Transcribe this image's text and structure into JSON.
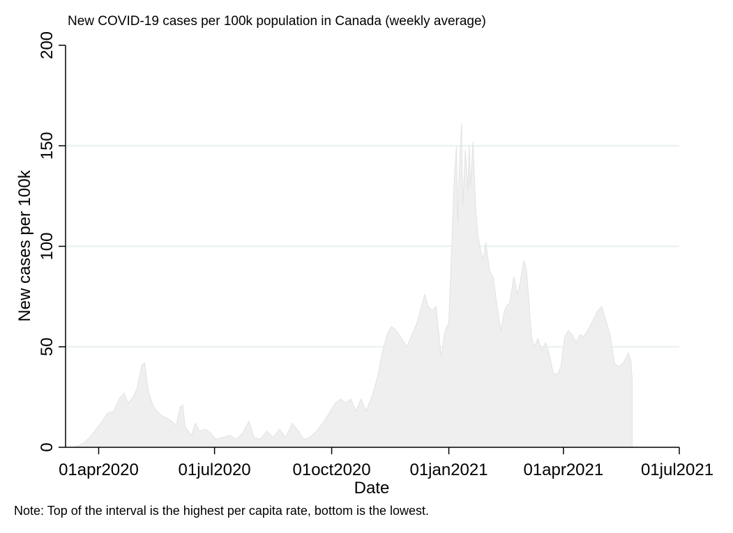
{
  "chart_data": {
    "type": "area",
    "title": "New COVID-19 cases per 100k population in Canada (weekly average)",
    "xlabel": "Date",
    "ylabel": "New cases per 100k",
    "note": "Note: Top of the interval is the highest per capita rate, bottom is the lowest.",
    "ylim": [
      0,
      200
    ],
    "xlim": [
      "2020-03-06",
      "2021-07-01"
    ],
    "yticks": [
      0,
      50,
      100,
      150,
      200
    ],
    "xticks": [
      {
        "date": "2020-04-01",
        "label": "01apr2020"
      },
      {
        "date": "2020-07-01",
        "label": "01jul2020"
      },
      {
        "date": "2020-10-01",
        "label": "01oct2020"
      },
      {
        "date": "2021-01-01",
        "label": "01jan2021"
      },
      {
        "date": "2021-04-01",
        "label": "01apr2021"
      },
      {
        "date": "2021-07-01",
        "label": "01jul2021"
      }
    ],
    "gridlines": [
      50,
      100,
      150
    ],
    "area_color": "#efefef",
    "area_stroke": "#e2e2e2",
    "grid_color": "#e7efef",
    "series": [
      {
        "values": [
          [
            "2020-03-11",
            0
          ],
          [
            "2020-03-15",
            0.5
          ],
          [
            "2020-03-20",
            2
          ],
          [
            "2020-03-25",
            5
          ],
          [
            "2020-03-30",
            9
          ],
          [
            "2020-04-04",
            13
          ],
          [
            "2020-04-08",
            17
          ],
          [
            "2020-04-13",
            18
          ],
          [
            "2020-04-17",
            24
          ],
          [
            "2020-04-21",
            27
          ],
          [
            "2020-04-24",
            22
          ],
          [
            "2020-04-28",
            25
          ],
          [
            "2020-05-01",
            29
          ],
          [
            "2020-05-05",
            41
          ],
          [
            "2020-05-07",
            42
          ],
          [
            "2020-05-10",
            28
          ],
          [
            "2020-05-14",
            20
          ],
          [
            "2020-05-20",
            16
          ],
          [
            "2020-05-26",
            14
          ],
          [
            "2020-06-01",
            11
          ],
          [
            "2020-06-04",
            20
          ],
          [
            "2020-06-06",
            21
          ],
          [
            "2020-06-08",
            10
          ],
          [
            "2020-06-13",
            6
          ],
          [
            "2020-06-16",
            12
          ],
          [
            "2020-06-19",
            8
          ],
          [
            "2020-06-24",
            9
          ],
          [
            "2020-06-28",
            7
          ],
          [
            "2020-07-02",
            4
          ],
          [
            "2020-07-08",
            5
          ],
          [
            "2020-07-13",
            6
          ],
          [
            "2020-07-18",
            4
          ],
          [
            "2020-07-23",
            7
          ],
          [
            "2020-07-28",
            13
          ],
          [
            "2020-08-01",
            5
          ],
          [
            "2020-08-06",
            4
          ],
          [
            "2020-08-11",
            8
          ],
          [
            "2020-08-16",
            5
          ],
          [
            "2020-08-21",
            9
          ],
          [
            "2020-08-26",
            5
          ],
          [
            "2020-08-31",
            12
          ],
          [
            "2020-09-05",
            8
          ],
          [
            "2020-09-09",
            4
          ],
          [
            "2020-09-14",
            5
          ],
          [
            "2020-09-19",
            8
          ],
          [
            "2020-09-24",
            12
          ],
          [
            "2020-09-29",
            17
          ],
          [
            "2020-10-04",
            22
          ],
          [
            "2020-10-08",
            24
          ],
          [
            "2020-10-12",
            22
          ],
          [
            "2020-10-16",
            24
          ],
          [
            "2020-10-20",
            18
          ],
          [
            "2020-10-24",
            24
          ],
          [
            "2020-10-28",
            18
          ],
          [
            "2020-11-02",
            26
          ],
          [
            "2020-11-06",
            35
          ],
          [
            "2020-11-10",
            48
          ],
          [
            "2020-11-14",
            57
          ],
          [
            "2020-11-17",
            60
          ],
          [
            "2020-11-21",
            58
          ],
          [
            "2020-11-25",
            54
          ],
          [
            "2020-11-29",
            50
          ],
          [
            "2020-12-03",
            56
          ],
          [
            "2020-12-07",
            62
          ],
          [
            "2020-12-10",
            69
          ],
          [
            "2020-12-13",
            76
          ],
          [
            "2020-12-16",
            70
          ],
          [
            "2020-12-19",
            68
          ],
          [
            "2020-12-22",
            70
          ],
          [
            "2020-12-26",
            45
          ],
          [
            "2020-12-29",
            58
          ],
          [
            "2021-01-01",
            62
          ],
          [
            "2021-01-03",
            95
          ],
          [
            "2021-01-05",
            130
          ],
          [
            "2021-01-07",
            150
          ],
          [
            "2021-01-08",
            112
          ],
          [
            "2021-01-09",
            135
          ],
          [
            "2021-01-11",
            161
          ],
          [
            "2021-01-12",
            120
          ],
          [
            "2021-01-14",
            148
          ],
          [
            "2021-01-16",
            128
          ],
          [
            "2021-01-17",
            150
          ],
          [
            "2021-01-18",
            130
          ],
          [
            "2021-01-20",
            152
          ],
          [
            "2021-01-22",
            120
          ],
          [
            "2021-01-24",
            105
          ],
          [
            "2021-01-26",
            98
          ],
          [
            "2021-01-28",
            93
          ],
          [
            "2021-01-30",
            102
          ],
          [
            "2021-02-02",
            88
          ],
          [
            "2021-02-05",
            84
          ],
          [
            "2021-02-08",
            70
          ],
          [
            "2021-02-11",
            58
          ],
          [
            "2021-02-13",
            66
          ],
          [
            "2021-02-15",
            70
          ],
          [
            "2021-02-18",
            72
          ],
          [
            "2021-02-21",
            85
          ],
          [
            "2021-02-24",
            76
          ],
          [
            "2021-02-26",
            82
          ],
          [
            "2021-03-01",
            93
          ],
          [
            "2021-03-03",
            88
          ],
          [
            "2021-03-05",
            72
          ],
          [
            "2021-03-07",
            55
          ],
          [
            "2021-03-09",
            50
          ],
          [
            "2021-03-12",
            54
          ],
          [
            "2021-03-15",
            48
          ],
          [
            "2021-03-18",
            52
          ],
          [
            "2021-03-21",
            46
          ],
          [
            "2021-03-24",
            37
          ],
          [
            "2021-03-27",
            36
          ],
          [
            "2021-03-30",
            40
          ],
          [
            "2021-04-02",
            55
          ],
          [
            "2021-04-05",
            58
          ],
          [
            "2021-04-08",
            56
          ],
          [
            "2021-04-11",
            52
          ],
          [
            "2021-04-14",
            56
          ],
          [
            "2021-04-17",
            55
          ],
          [
            "2021-04-20",
            58
          ],
          [
            "2021-04-24",
            63
          ],
          [
            "2021-04-28",
            68
          ],
          [
            "2021-05-01",
            70
          ],
          [
            "2021-05-05",
            62
          ],
          [
            "2021-05-08",
            55
          ],
          [
            "2021-05-11",
            42
          ],
          [
            "2021-05-14",
            40
          ],
          [
            "2021-05-18",
            42
          ],
          [
            "2021-05-22",
            47
          ],
          [
            "2021-05-24",
            43
          ],
          [
            "2021-05-25",
            34
          ],
          [
            "2021-05-25",
            0
          ]
        ]
      }
    ]
  }
}
